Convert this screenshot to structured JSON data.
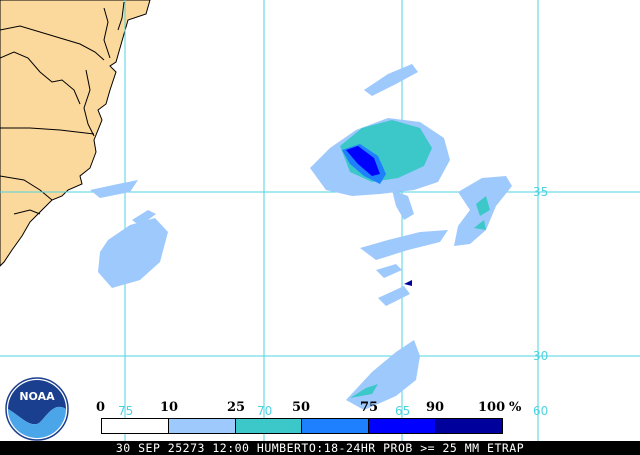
{
  "colors": {
    "land": "#fbd89c",
    "coast": "#000000",
    "ocean": "#ffffff",
    "grid": "#4fd3e0",
    "prob_10": "#9ec9fc",
    "prob_25": "#3cc8c8",
    "prob_50": "#1e80ff",
    "prob_75": "#0000ff",
    "prob_90": "#00009c"
  },
  "grid_labels": {
    "lon": [
      "75",
      "70",
      "65",
      "60"
    ],
    "lat": [
      "35",
      "30"
    ]
  },
  "legend": {
    "ticks": [
      "0",
      "10",
      "25",
      "50",
      "75",
      "90",
      "100"
    ],
    "unit": "%",
    "colors": [
      "#ffffff",
      "#9ec9fc",
      "#3cc8c8",
      "#1e80ff",
      "#0000ff",
      "#00009c"
    ]
  },
  "logo": {
    "text": "NOAA"
  },
  "footer": {
    "text": "30 SEP 25273 12:00 HUMBERTO:18-24HR PROB >= 25 MM ETRAP"
  }
}
